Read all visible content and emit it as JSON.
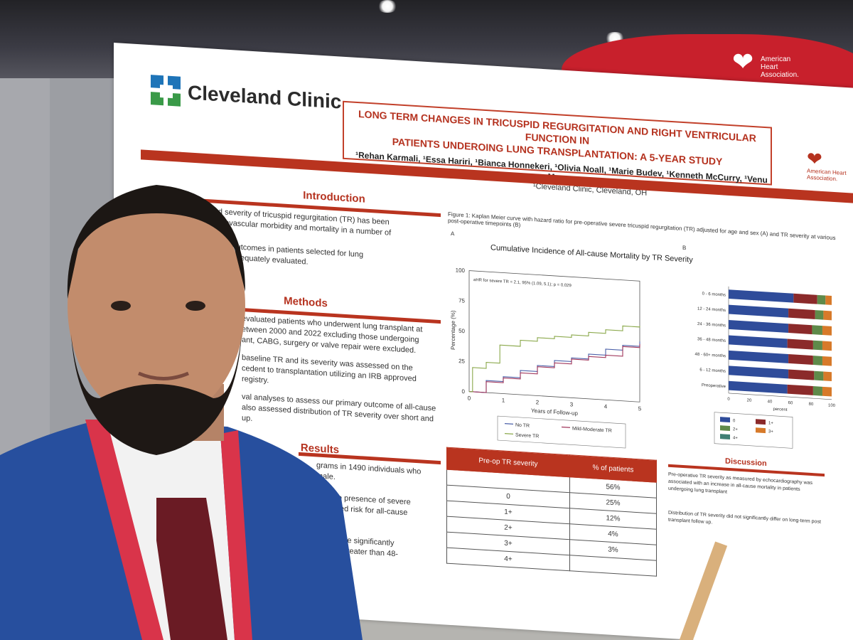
{
  "poster": {
    "org_name": "Cleveland Clinic",
    "title_line1": "LONG TERM CHANGES IN TRICUSPID REGURGITATION AND RIGHT VENTRICULAR FUNCTION IN",
    "title_line2": "PATIENTS UNDEROING LUNG TRANSPLANTATION:  A 5-YEAR STUDY",
    "authors": "¹Rehan Karmali, ¹Essa Hariri, ¹Bianca Honnekeri, ¹Olivia Noall, ¹Marie Budev, ¹Kenneth McCurry, ¹Venu Menon",
    "affiliation": "¹Cleveland Clinic, Cleveland, OH",
    "aha_text": "American Heart Association.",
    "sections": {
      "introduction": {
        "heading": "Introduction",
        "p1": "ce and severity of tricuspid regurgitation (TR) has been",
        "p2": "th cardiovascular morbidity and mortality in a number of",
        "p3": "on future outcomes in patients selected for lung",
        "p4": "not been adequately evaluated."
      },
      "methods": {
        "heading": "Methods",
        "p1": "evaluated patients who underwent lung transplant at",
        "p2": "etween 2000 and 2022 excluding those undergoing",
        "p3": "ant, CABG, surgery or valve repair were excluded.",
        "p4": "baseline TR and its severity was assessed on the",
        "p5": "cedent to transplantation utilizing an IRB approved",
        "p6": "registry.",
        "p7": "val analyses to assess our primary outcome of all-cause",
        "p8": "also assessed distribution of TR severity over short and",
        "p9": "up."
      },
      "results": {
        "heading": "Results",
        "p1": "grams in 1490 individuals who",
        "p2": "male.",
        "p3": "iod, the presence of severe",
        "p4": "ncreased risk for all-cause",
        "p5": "029].",
        "p6": "pear to be significantly",
        "p7": "48 and greater than 48-",
        "p8": ".062)."
      },
      "discussion": {
        "heading": "Discussion",
        "p1": "Pre-operative TR severity as measured by echocardiography was associated with an increase in all-cause mortality in patients undergoing lung transplant",
        "p2": "Distribution of TR severity did not significantly differ on long-term post transplant follow up."
      }
    },
    "figure_caption": "Figure 1: Kaplan Meier curve with hazard ratio for pre-operative severe tricuspid regurgitation (TR) adjusted for age and sex (A) and TR severity at various post-operative timepoints (B)",
    "panel_a_label": "A",
    "panel_b_label": "B",
    "table": {
      "headers": [
        "Pre-op TR severity",
        "% of patients"
      ],
      "rows": [
        [
          "",
          "56%"
        ],
        [
          "0",
          "25%"
        ],
        [
          "1+",
          "12%"
        ],
        [
          "2+",
          "4%"
        ],
        [
          "3+",
          "3%"
        ],
        [
          "4+",
          ""
        ]
      ]
    }
  },
  "chart_data": [
    {
      "type": "line",
      "title": "Cumulative Incidence of All-cause Mortality by TR Severity",
      "xlabel": "Years of Follow-up",
      "ylabel": "Percentage (%)",
      "xlim": [
        0,
        5
      ],
      "ylim": [
        0,
        100
      ],
      "x_ticks": [
        "0",
        "1",
        "2",
        "3",
        "4",
        "5"
      ],
      "y_ticks": [
        "0",
        "25",
        "50",
        "75",
        "100"
      ],
      "annotation": "aHR for severe TR = 2.1, 95% (1.09, 5.1); p = 0.029",
      "legend_placement": "bottom",
      "series": [
        {
          "name": "No TR",
          "color": "#4a5fa8",
          "x": [
            0,
            0.5,
            1,
            1.5,
            2,
            2.5,
            3,
            3.5,
            4,
            4.5,
            5
          ],
          "y": [
            0,
            10,
            14,
            20,
            25,
            30,
            33,
            37,
            42,
            46,
            50
          ]
        },
        {
          "name": "Mild-Moderate TR",
          "color": "#a0355a",
          "x": [
            0,
            0.5,
            1,
            1.5,
            2,
            2.5,
            3,
            3.5,
            4,
            4.5,
            5
          ],
          "y": [
            0,
            9,
            13,
            18,
            24,
            28,
            32,
            35,
            37,
            45,
            48
          ]
        },
        {
          "name": "Severe TR",
          "color": "#8aa84a",
          "x": [
            0,
            0.1,
            0.5,
            0.9,
            1.5,
            2,
            2.5,
            3,
            3.5,
            4,
            4.5,
            5
          ],
          "y": [
            0,
            20,
            25,
            40,
            45,
            48,
            50,
            52,
            55,
            58,
            62,
            63
          ]
        }
      ]
    },
    {
      "type": "bar",
      "orientation": "horizontal",
      "stacked": true,
      "xlabel": "percent",
      "xlim": [
        0,
        100
      ],
      "x_ticks": [
        "0",
        "20",
        "40",
        "60",
        "80",
        "100"
      ],
      "categories": [
        "0 - 6 months",
        "12 - 24 months",
        "24 - 36 months",
        "36 - 48 months",
        "48 - 60+ months",
        "6 - 12 months",
        "Preoperative"
      ],
      "legend_placement": "bottom",
      "series": [
        {
          "name": "0",
          "color": "#2f4c9a",
          "values": [
            63,
            58,
            58,
            57,
            58,
            58,
            57
          ]
        },
        {
          "name": "1+",
          "color": "#8b2a2a",
          "values": [
            23,
            26,
            23,
            25,
            24,
            25,
            25
          ]
        },
        {
          "name": "2+",
          "color": "#5f8a4a",
          "values": [
            8,
            8,
            10,
            9,
            9,
            9,
            9
          ]
        },
        {
          "name": "3+",
          "color": "#d77a2a",
          "values": [
            6,
            8,
            9,
            9,
            9,
            8,
            9
          ]
        }
      ],
      "extra_legend": "4+"
    }
  ],
  "colors": {
    "accent_red": "#b9341f",
    "cc_blue": "#1e74b8",
    "cc_green": "#3a9a48",
    "aha_red": "#c8202c"
  }
}
